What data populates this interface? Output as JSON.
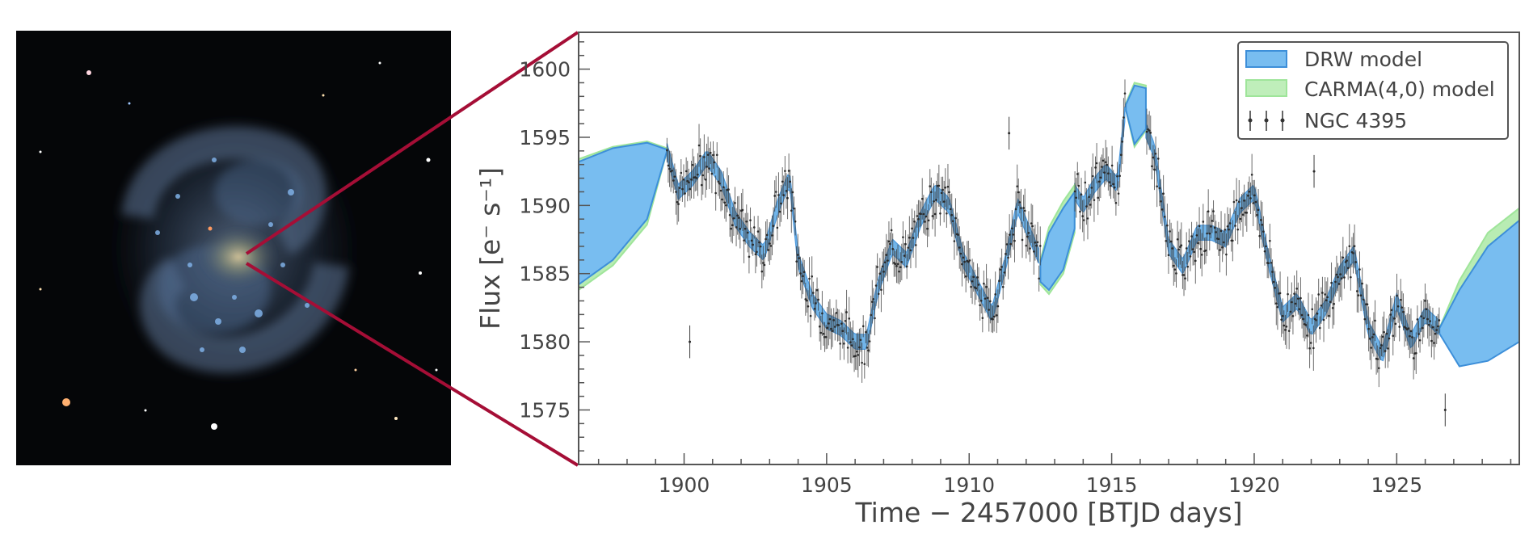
{
  "colors": {
    "drw": "#5aa9e6",
    "drw_edge": "#3d8fd9",
    "carma": "#a6e6a0",
    "carma_edge": "#90e090",
    "data": "#333333",
    "zoom_line": "#a50e36",
    "axis": "#555555"
  },
  "galaxy": {
    "icon": "galaxy-image-icon"
  },
  "chart_data": {
    "type": "line",
    "title": "",
    "xlabel": "Time − 2457000 [BTJD days]",
    "ylabel": "Flux [e⁻ s⁻¹]",
    "xlim": [
      1896.3,
      1929.3
    ],
    "ylim": [
      1571,
      1602.7
    ],
    "xticks": [
      1900,
      1905,
      1910,
      1915,
      1920,
      1925
    ],
    "xtick_labels": [
      "1900",
      "1905",
      "1910",
      "1915",
      "1920",
      "1925"
    ],
    "yticks": [
      1575,
      1580,
      1585,
      1590,
      1595,
      1600
    ],
    "ytick_labels": [
      "1575",
      "1580",
      "1585",
      "1590",
      "1595",
      "1600"
    ],
    "grid": false,
    "legend_position": "top-right",
    "legend": [
      "DRW model",
      "CARMA(4,0) model",
      "NGC 4395"
    ],
    "series": [
      {
        "name": "NGC 4395",
        "x": [
          1899.4,
          1899.8,
          1900.3,
          1900.8,
          1901.3,
          1901.8,
          1902.3,
          1902.8,
          1903.3,
          1903.7,
          1904.0,
          1904.5,
          1905.0,
          1905.5,
          1906.0,
          1906.4,
          1906.8,
          1907.3,
          1907.8,
          1908.3,
          1908.8,
          1909.3,
          1909.8,
          1910.3,
          1910.8,
          1911.3,
          1911.7,
          1912.1,
          1912.5,
          1913.7,
          1914.0,
          1914.4,
          1914.8,
          1915.2,
          1915.5,
          1916.0,
          1916.5,
          1917.0,
          1917.5,
          1918.0,
          1918.5,
          1919.0,
          1919.5,
          1920.0,
          1920.5,
          1921.0,
          1921.5,
          1922.0,
          1922.5,
          1923.0,
          1923.5,
          1924.0,
          1924.5,
          1925.0,
          1925.5,
          1926.0,
          1926.5
        ],
        "y": [
          1594,
          1591,
          1592,
          1593.5,
          1592,
          1589,
          1587.5,
          1586.5,
          1590,
          1592,
          1586,
          1583,
          1581.5,
          1581,
          1580,
          1580,
          1584,
          1587,
          1586,
          1589,
          1591,
          1590,
          1586,
          1584,
          1582,
          1586,
          1590,
          1588,
          1586,
          1591,
          1590,
          1591.5,
          1592.5,
          1591.5,
          1597.5,
          1596.5,
          1594,
          1587,
          1585.5,
          1588,
          1588,
          1587.5,
          1590,
          1591,
          1586,
          1582,
          1583,
          1581,
          1582.5,
          1585,
          1586.5,
          1581,
          1579,
          1583,
          1580,
          1582,
          1581
        ]
      },
      {
        "name": "DRW model",
        "gap_intervals": [
          [
            1896.3,
            1899.4
          ],
          [
            1912.5,
            1913.7
          ],
          [
            1915.5,
            1916.2
          ],
          [
            1926.5,
            1929.3
          ]
        ]
      },
      {
        "name": "CARMA(4,0) model",
        "gap_intervals": [
          [
            1896.3,
            1899.4
          ],
          [
            1912.5,
            1913.7
          ],
          [
            1915.5,
            1916.2
          ],
          [
            1926.5,
            1929.3
          ]
        ]
      }
    ]
  }
}
